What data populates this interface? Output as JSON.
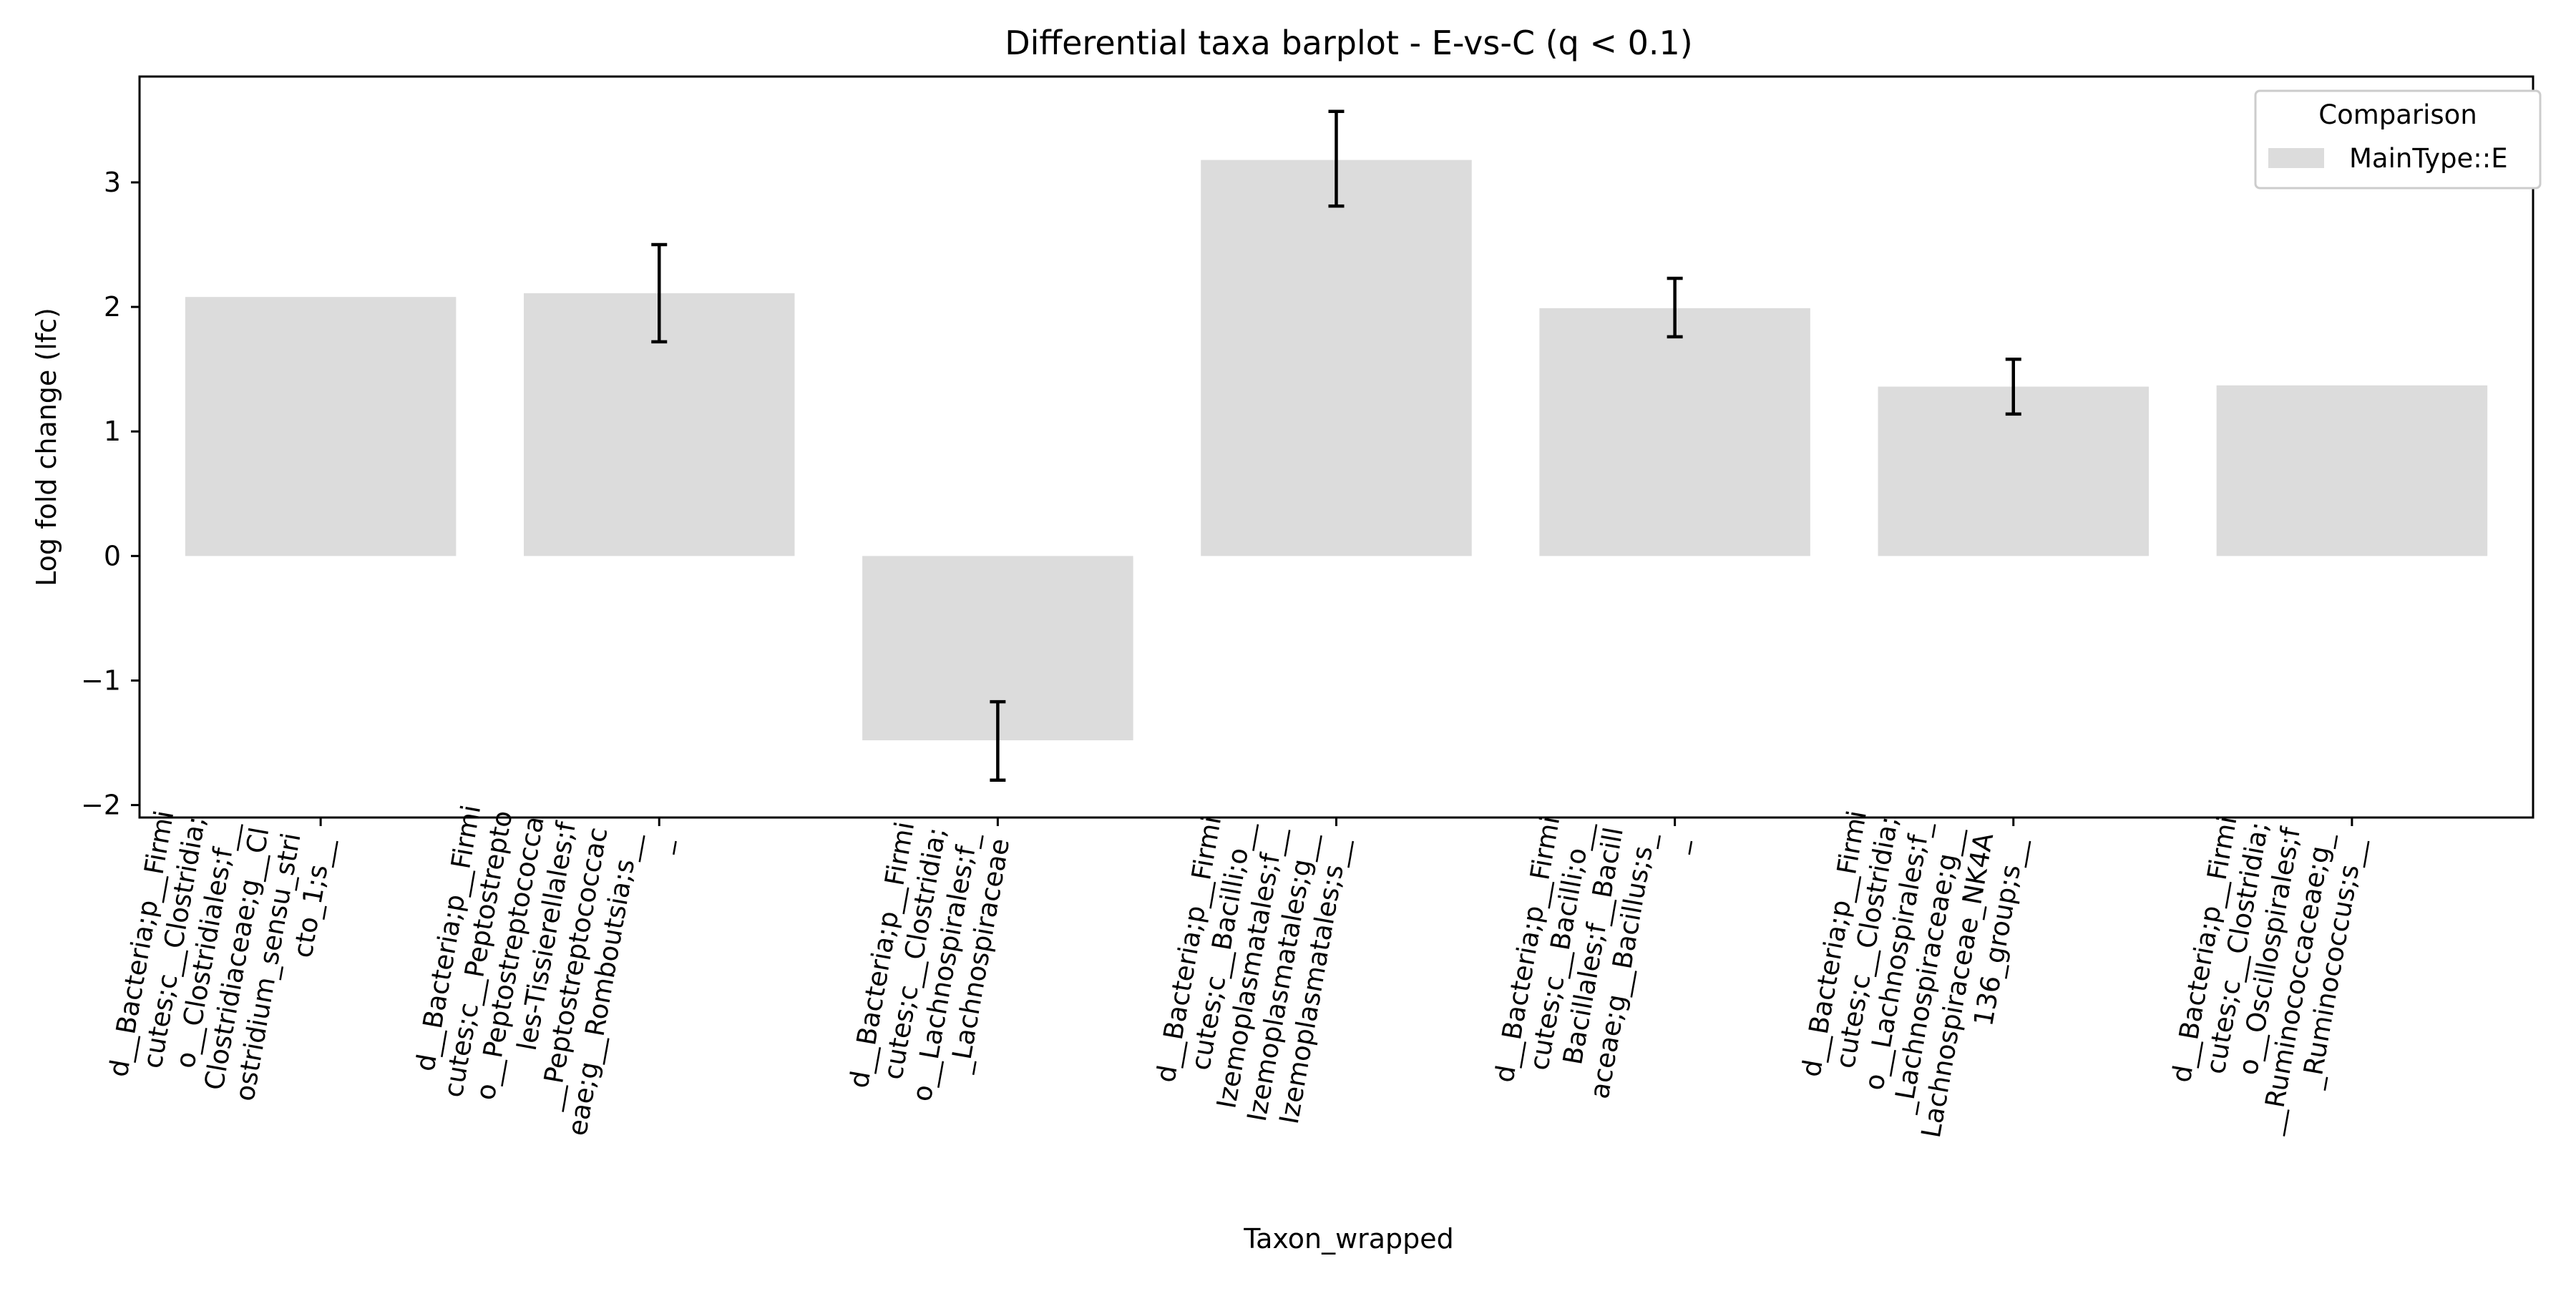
{
  "chart_data": {
    "type": "bar",
    "title": "Differential taxa barplot - E-vs-C (q < 0.1)",
    "xlabel": "Taxon_wrapped",
    "ylabel": "Log fold change (lfc)",
    "ylim": [
      -2.1,
      3.85
    ],
    "yticks": [
      -2,
      -1,
      0,
      1,
      2,
      3
    ],
    "ytick_labels": [
      "−2",
      "−1",
      "0",
      "1",
      "2",
      "3"
    ],
    "grid": false,
    "legend": {
      "title": "Comparison",
      "placement": "top-right",
      "entries": [
        {
          "label": "MainType::E",
          "color": "#dcdcdc"
        }
      ]
    },
    "categories": [
      [
        "d__Bacteria;p__Firmi",
        "cutes;c__Clostridia;",
        "o__Clostridiales;f__",
        "Clostridiaceae;g__Cl",
        "ostridium_sensu_stri",
        "cto_1;s__"
      ],
      [
        "d__Bacteria;p__Firmi",
        "cutes;c__Peptostrepto",
        "o__Peptostreptococca",
        "les-Tissierellales;f",
        "__Peptostreptococcac",
        "eae;g__Romboutsia;s__",
        "_"
      ],
      [
        "d__Bacteria;p__Firmi",
        "cutes;c__Clostridia;",
        "o__Lachnospirales;f_",
        "_Lachnospiraceae"
      ],
      [
        "d__Bacteria;p__Firmi",
        "cutes;c__Bacilli;o__",
        "Izemoplasmatales;f__",
        "Izemoplasmatales;g__",
        "Izemoplasmatales;s__"
      ],
      [
        "d__Bacteria;p__Firmi",
        "cutes;c__Bacilli;o__",
        "Bacillales;f__Bacill",
        "aceae;g__Bacillus;s_",
        "_"
      ],
      [
        "d__Bacteria;p__Firmi",
        "cutes;c__Clostridia;",
        "o__Lachnospirales;f_",
        "_Lachnospiraceae;g__",
        "Lachnospiraceae_NK4A",
        "136_group;s__"
      ],
      [
        "d__Bacteria;p__Firmi",
        "cutes;c__Clostridia;",
        "o__Oscillospirales;f",
        "__Ruminococcaceae;g_",
        "_Ruminococcus;s__"
      ]
    ],
    "series": [
      {
        "name": "MainType::E",
        "color": "#dcdcdc",
        "values": [
          2.08,
          2.11,
          -1.48,
          3.18,
          1.99,
          1.36,
          1.37
        ],
        "error_low": [
          null,
          1.72,
          -1.8,
          2.81,
          1.76,
          1.14,
          null
        ],
        "error_high": [
          null,
          2.5,
          -1.17,
          3.57,
          2.23,
          1.58,
          null
        ]
      }
    ]
  }
}
